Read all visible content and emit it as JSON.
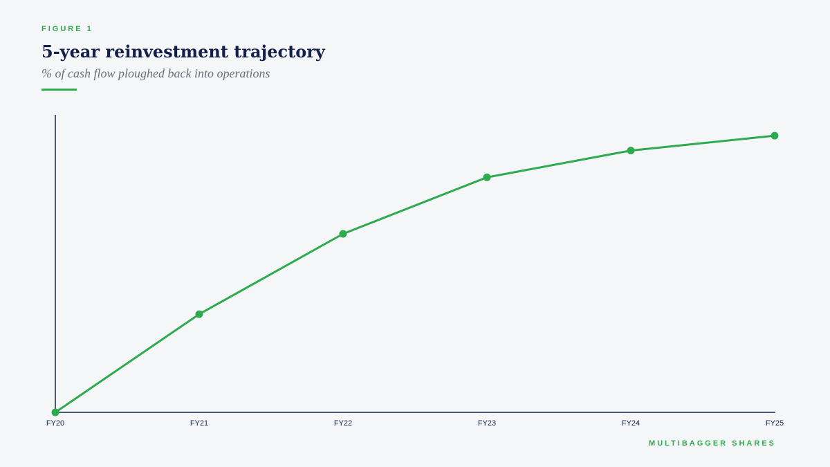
{
  "chart_data": {
    "type": "line",
    "kicker": "FIGURE 1",
    "title": "5-year reinvestment trajectory",
    "subtitle": "% of cash flow ploughed back into operations",
    "categories": [
      "FY20",
      "FY21",
      "FY22",
      "FY23",
      "FY24",
      "FY25"
    ],
    "values": [
      0,
      33,
      60,
      79,
      88,
      93
    ],
    "color": "#2eaa4f",
    "ylim": [
      0,
      100
    ],
    "grid": false,
    "source": "MULTIBAGGER SHARES"
  }
}
